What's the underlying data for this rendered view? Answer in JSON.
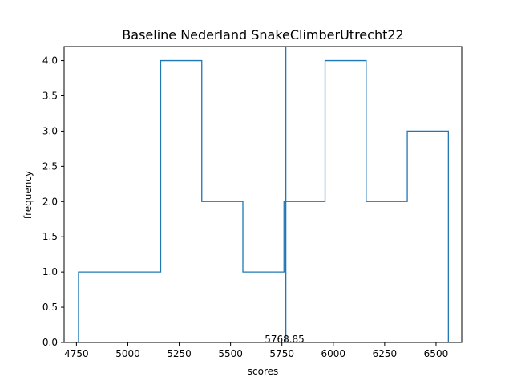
{
  "chart_data": {
    "type": "histogram",
    "title": "Baseline Nederland SnakeClimberUtrecht22",
    "xlabel": "scores",
    "ylabel": "frequency",
    "bin_edges": [
      4760,
      4960,
      5160,
      5360,
      5560,
      5760,
      5960,
      6160,
      6360,
      6560
    ],
    "counts": [
      1,
      1,
      4,
      2,
      1,
      2,
      4,
      2,
      3
    ],
    "xlim": [
      4690,
      6625
    ],
    "ylim": [
      0,
      4.2
    ],
    "xticks": [
      4750,
      5000,
      5250,
      5500,
      5750,
      6000,
      6250,
      6500
    ],
    "yticks": [
      0.0,
      0.5,
      1.0,
      1.5,
      2.0,
      2.5,
      3.0,
      3.5,
      4.0
    ],
    "xtick_labels": [
      "4750",
      "5000",
      "5250",
      "5500",
      "5750",
      "6000",
      "6250",
      "6500"
    ],
    "ytick_labels": [
      "0.0",
      "0.5",
      "1.0",
      "1.5",
      "2.0",
      "2.5",
      "3.0",
      "3.5",
      "4.0"
    ],
    "vline": {
      "x": 5768.85,
      "label": "5768.85"
    },
    "colors": {
      "line": "#1f77b4",
      "axes": "#000000"
    },
    "grid": false,
    "legend": "none"
  }
}
